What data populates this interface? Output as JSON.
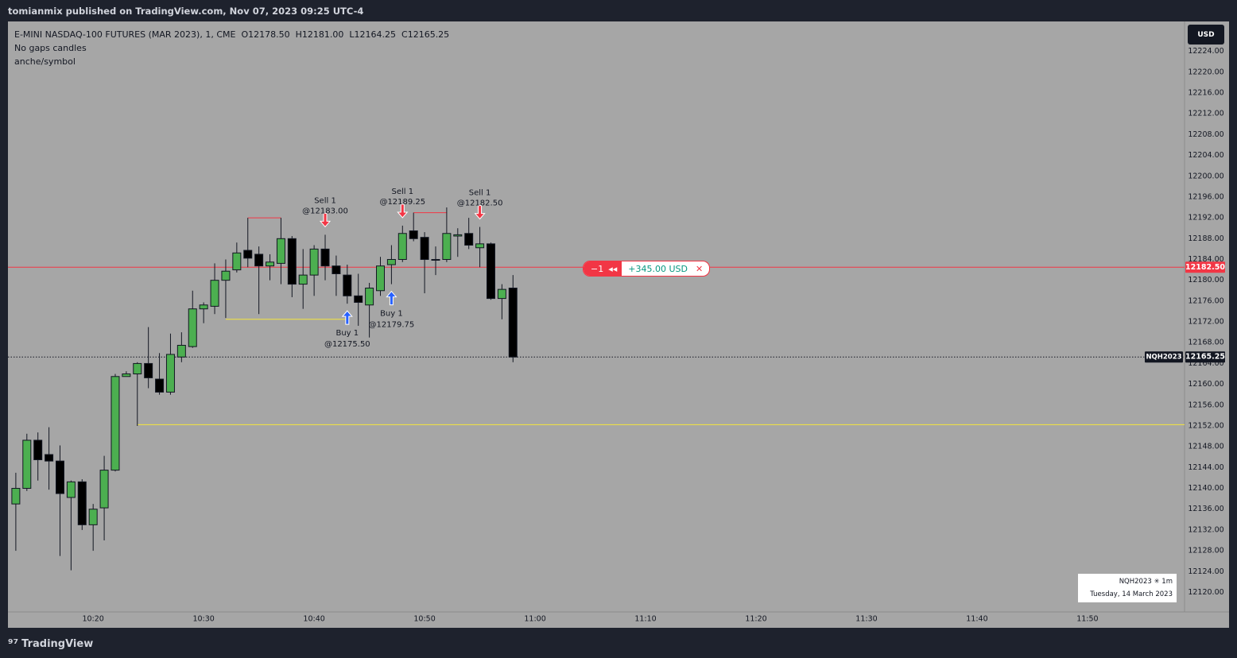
{
  "header": {
    "publisher": "tomianmix published on TradingView.com, Nov 07, 2023 09:25 UTC-4"
  },
  "chart_data": {
    "type": "candlestick",
    "title": "E-MINI NASDAQ-100 FUTURES (MAR 2023), 1, CME",
    "ohlc_labels": [
      "O12178.50",
      "H12181.00",
      "L12164.25",
      "C12165.25"
    ],
    "indicators": [
      "No gaps candles",
      "anche/symbol"
    ],
    "currency": "USD",
    "x": [
      "10:13",
      "10:14",
      "10:15",
      "10:16",
      "10:17",
      "10:18",
      "10:19",
      "10:20",
      "10:21",
      "10:22",
      "10:23",
      "10:24",
      "10:25",
      "10:26",
      "10:27",
      "10:28",
      "10:29",
      "10:30",
      "10:31",
      "10:32",
      "10:33",
      "10:34",
      "10:35",
      "10:36",
      "10:37",
      "10:38",
      "10:39",
      "10:40",
      "10:41",
      "10:42",
      "10:43",
      "10:44",
      "10:45",
      "10:46",
      "10:47",
      "10:48",
      "10:49",
      "10:50",
      "10:51",
      "10:52",
      "10:53",
      "10:54",
      "10:55",
      "10:56",
      "10:57",
      "10:58"
    ],
    "open": [
      12137,
      12140,
      12149.25,
      12146.5,
      12145.25,
      12138.25,
      12141.25,
      12133,
      12136.25,
      12143.5,
      12161.5,
      12162,
      12164,
      12161,
      12158.5,
      12165.25,
      12167.25,
      12174.5,
      12175,
      12180,
      12182,
      12185.75,
      12185,
      12182.75,
      12183.25,
      12188,
      12179.25,
      12181,
      12186,
      12182.75,
      12181,
      12177,
      12175.25,
      12178,
      12183,
      12184,
      12189.5,
      12188.25,
      12184,
      12184,
      12188.5,
      12189,
      12186.25,
      12187,
      12176.5,
      12178.5
    ],
    "high": [
      12143,
      12150.5,
      12150.75,
      12151.75,
      12148.25,
      12141.5,
      12141.75,
      12137,
      12146.25,
      12162,
      12162.5,
      12164.25,
      12171,
      12166,
      12169.75,
      12170,
      12178,
      12175.75,
      12183.25,
      12184,
      12187.25,
      12192,
      12186.5,
      12185,
      12192,
      12188.5,
      12186,
      12186.75,
      12188.75,
      12184.75,
      12183,
      12181.25,
      12179.5,
      12184.5,
      12186.75,
      12190.5,
      12193,
      12189.25,
      12186.5,
      12194,
      12190,
      12192,
      12190.25,
      12187.25,
      12179.25,
      12181
    ],
    "low": [
      12128,
      12139.5,
      12141.5,
      12139.75,
      12127,
      12124.25,
      12132,
      12128,
      12130,
      12143.25,
      12161.75,
      12152,
      12159.25,
      12158,
      12158,
      12164.25,
      12167,
      12171.75,
      12173.5,
      12172.75,
      12181.5,
      12182.5,
      12173.5,
      12180,
      12179.25,
      12176.75,
      12174.5,
      12177,
      12180,
      12177,
      12175.5,
      12171.25,
      12169,
      12177,
      12179.25,
      12183.5,
      12187.5,
      12177.5,
      12181,
      12183.5,
      12184.5,
      12186,
      12182.5,
      12176.25,
      12172.5,
      12164.25
    ],
    "close": [
      12140,
      12149.25,
      12145.5,
      12145.25,
      12139,
      12141.25,
      12133,
      12136,
      12143.5,
      12161.5,
      12162,
      12164,
      12161.25,
      12158.5,
      12165.75,
      12167.5,
      12174.5,
      12175.25,
      12180,
      12181.75,
      12185.25,
      12184.25,
      12182.75,
      12183.5,
      12188,
      12179.25,
      12181,
      12186,
      12182.75,
      12181.25,
      12177,
      12175.75,
      12178.5,
      12182.75,
      12184,
      12189,
      12188,
      12184,
      12184,
      12189,
      12188.75,
      12186.75,
      12187,
      12176.5,
      12178.25,
      12165.25
    ],
    "up_color": "#4caf50",
    "down_color": "#000000",
    "ylim": [
      12116.25,
      12229.75
    ],
    "yticks": [
      {
        "value": 12120,
        "label": "12120.00"
      },
      {
        "value": 12124,
        "label": "12124.00"
      },
      {
        "value": 12128,
        "label": "12128.00"
      },
      {
        "value": 12132,
        "label": "12132.00"
      },
      {
        "value": 12136,
        "label": "12136.00"
      },
      {
        "value": 12140,
        "label": "12140.00"
      },
      {
        "value": 12144,
        "label": "12144.00"
      },
      {
        "value": 12148,
        "label": "12148.00"
      },
      {
        "value": 12152,
        "label": "12152.00"
      },
      {
        "value": 12156,
        "label": "12156.00"
      },
      {
        "value": 12160,
        "label": "12160.00"
      },
      {
        "value": 12164,
        "label": "12164.00"
      },
      {
        "value": 12168,
        "label": "12168.00"
      },
      {
        "value": 12172,
        "label": "12172.00"
      },
      {
        "value": 12176,
        "label": "12176.00"
      },
      {
        "value": 12180,
        "label": "12180.00"
      },
      {
        "value": 12184,
        "label": "12184.00"
      },
      {
        "value": 12188,
        "label": "12188.00"
      },
      {
        "value": 12192,
        "label": "12192.00"
      },
      {
        "value": 12196,
        "label": "12196.00"
      },
      {
        "value": 12200,
        "label": "12200.00"
      },
      {
        "value": 12204,
        "label": "12204.00"
      },
      {
        "value": 12208,
        "label": "12208.00"
      },
      {
        "value": 12212,
        "label": "12212.00"
      },
      {
        "value": 12216,
        "label": "12216.00"
      },
      {
        "value": 12220,
        "label": "12220.00"
      },
      {
        "value": 12224,
        "label": "12224.00"
      }
    ],
    "xlim": [
      "10:12",
      "11:59"
    ],
    "xticks": [
      "10:20",
      "10:30",
      "10:40",
      "10:50",
      "11:00",
      "11:10",
      "11:20",
      "11:30",
      "11:40",
      "11:50"
    ],
    "levels": [
      {
        "value": 12182.5,
        "color": "#f23645",
        "label": "12182.50"
      },
      {
        "value": 12165.25,
        "color": "#131722",
        "style": "dotted",
        "label": "12165.25",
        "tag": "NQH2023"
      },
      {
        "value": 12172.5,
        "color": "#f5e63b",
        "from": "10:32",
        "to": "10:43"
      },
      {
        "value": 12152.25,
        "color": "#f5e63b",
        "from": "10:24"
      },
      {
        "value": 12192,
        "color": "#f23645",
        "from": "10:34",
        "to": "10:37"
      },
      {
        "value": 12193,
        "color": "#f23645",
        "from": "10:49",
        "to": "10:52"
      }
    ],
    "trades": [
      {
        "side": "sell",
        "label": "Sell 1",
        "price": "@12183.00",
        "time": "10:41"
      },
      {
        "side": "sell",
        "label": "Sell 1",
        "price": "@12189.25",
        "time": "10:48"
      },
      {
        "side": "sell",
        "label": "Sell 1",
        "price": "@12182.50",
        "time": "10:55"
      },
      {
        "side": "buy",
        "label": "Buy 1",
        "price": "@12175.50",
        "time": "10:43"
      },
      {
        "side": "buy",
        "label": "Buy 1",
        "price": "@12179.75",
        "time": "10:47"
      }
    ],
    "position": {
      "qty": "−1",
      "pnl": "+345.00 USD"
    },
    "symbol_box": [
      "NQH2023 ✳ 1m",
      "Tuesday, 14 March 2023"
    ]
  },
  "footer": {
    "brand": "TradingView"
  }
}
